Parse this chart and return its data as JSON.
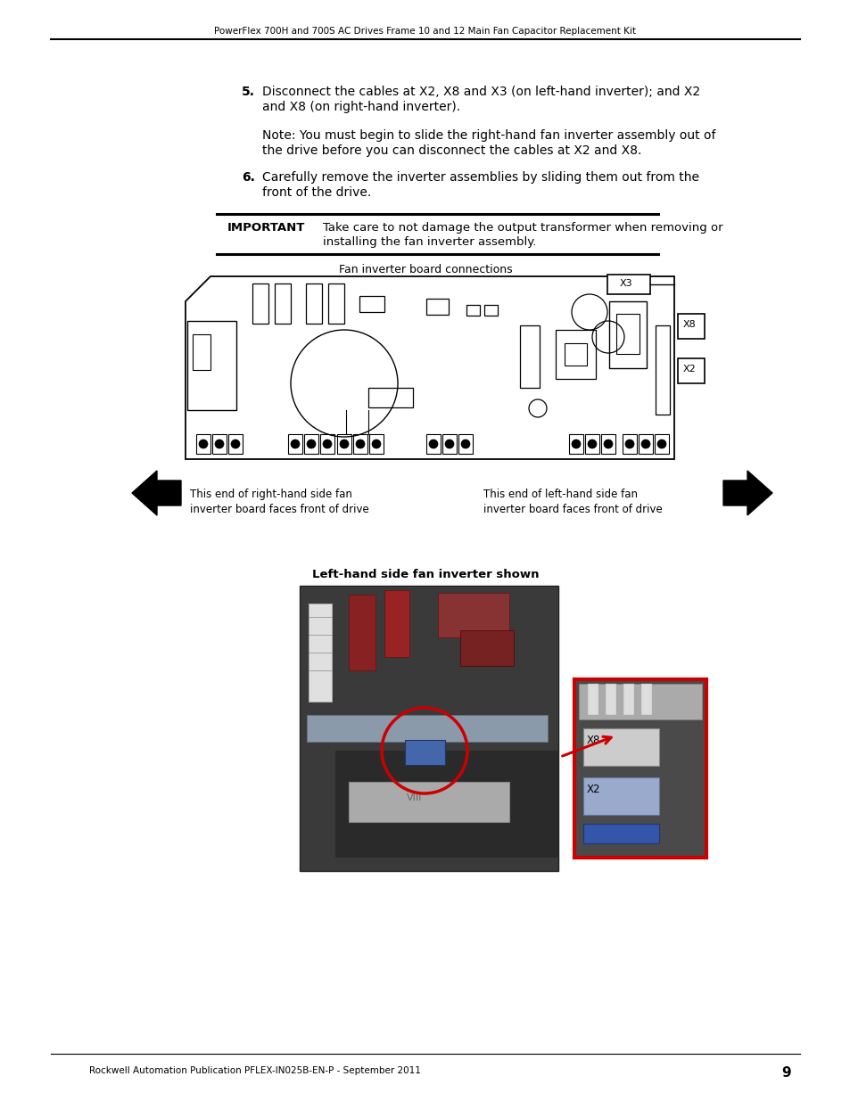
{
  "header_text": "PowerFlex 700H and 700S AC Drives Frame 10 and 12 Main Fan Capacitor Replacement Kit",
  "footer_text": "Rockwell Automation Publication PFLEX-IN025B-EN-P - September 2011",
  "page_number": "9",
  "bg_color": "#ffffff",
  "step5_line1": "Disconnect the cables at X2, X8 and X3 (on left-hand inverter); and X2",
  "step5_line2": "and X8 (on right-hand inverter).",
  "note_line1": "Note: You must begin to slide the right-hand fan inverter assembly out of",
  "note_line2": "the drive before you can disconnect the cables at X2 and X8.",
  "step6_line1": "Carefully remove the inverter assemblies by sliding them out from the",
  "step6_line2": "front of the drive.",
  "important_label": "IMPORTANT",
  "important_line1": "Take care to not damage the output transformer when removing or",
  "important_line2": "installing the fan inverter assembly.",
  "diagram_title": "Fan inverter board connections",
  "photo_caption": "Left-hand side fan inverter shown",
  "left_arrow_label1": "This end of right-hand side fan",
  "left_arrow_label2": "inverter board faces front of drive",
  "right_arrow_label1": "This end of left-hand side fan",
  "right_arrow_label2": "inverter board faces front of drive"
}
